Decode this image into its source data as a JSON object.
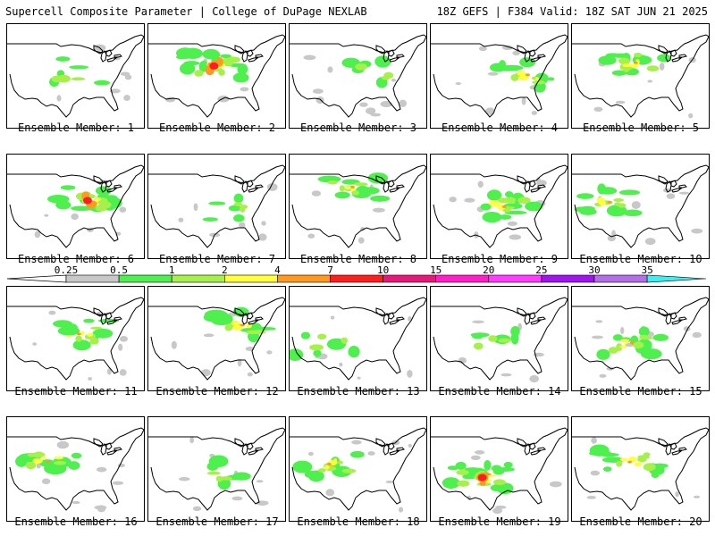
{
  "header": {
    "left": "Supercell Composite Parameter | College of DuPage NEXLAB",
    "right": "18Z GEFS | F384 Valid: 18Z SAT JUN 21 2025"
  },
  "colorbar": {
    "labels": [
      "0.25",
      "0.5",
      "1",
      "2",
      "4",
      "7",
      "10",
      "15",
      "20",
      "25",
      "30",
      "35"
    ],
    "colors": [
      "#c8c8c8",
      "#4ef04e",
      "#a6f04a",
      "#ffff3c",
      "#ff9a1e",
      "#ff1e1e",
      "#e6197a",
      "#ff1ec8",
      "#ff3cff",
      "#a014f0",
      "#b46ee6",
      "#3cf0f0"
    ]
  },
  "members": [
    {
      "label": "Ensemble Member: 1",
      "intensity": "low"
    },
    {
      "label": "Ensemble Member: 2",
      "intensity": "high"
    },
    {
      "label": "Ensemble Member: 3",
      "intensity": "low"
    },
    {
      "label": "Ensemble Member: 4",
      "intensity": "moderate"
    },
    {
      "label": "Ensemble Member: 5",
      "intensity": "moderate"
    },
    {
      "label": "Ensemble Member: 6",
      "intensity": "high"
    },
    {
      "label": "Ensemble Member: 7",
      "intensity": "low"
    },
    {
      "label": "Ensemble Member: 8",
      "intensity": "moderate"
    },
    {
      "label": "Ensemble Member: 9",
      "intensity": "moderate"
    },
    {
      "label": "Ensemble Member: 10",
      "intensity": "moderate"
    },
    {
      "label": "Ensemble Member: 11",
      "intensity": "moderate"
    },
    {
      "label": "Ensemble Member: 12",
      "intensity": "moderate"
    },
    {
      "label": "Ensemble Member: 13",
      "intensity": "low"
    },
    {
      "label": "Ensemble Member: 14",
      "intensity": "low"
    },
    {
      "label": "Ensemble Member: 15",
      "intensity": "moderate"
    },
    {
      "label": "Ensemble Member: 16",
      "intensity": "moderate"
    },
    {
      "label": "Ensemble Member: 17",
      "intensity": "low"
    },
    {
      "label": "Ensemble Member: 18",
      "intensity": "moderate"
    },
    {
      "label": "Ensemble Member: 19",
      "intensity": "high"
    },
    {
      "label": "Ensemble Member: 20",
      "intensity": "moderate"
    }
  ]
}
